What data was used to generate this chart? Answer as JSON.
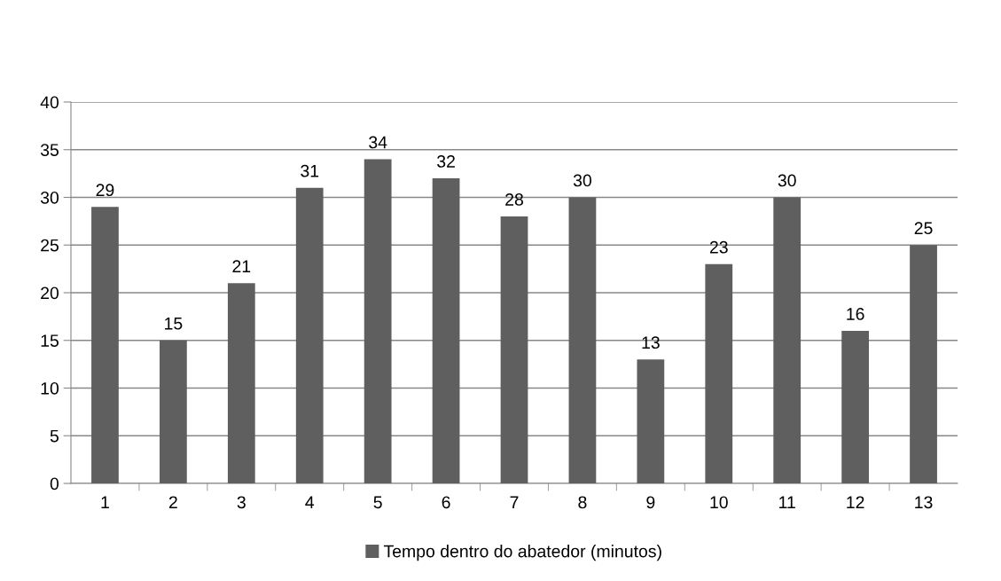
{
  "chart_data": {
    "type": "bar",
    "categories": [
      "1",
      "2",
      "3",
      "4",
      "5",
      "6",
      "7",
      "8",
      "9",
      "10",
      "11",
      "12",
      "13"
    ],
    "series": [
      {
        "name": "Tempo dentro do abatedor (minutos)",
        "color": "#5f5f5f",
        "values": [
          29,
          15,
          21,
          31,
          34,
          32,
          28,
          30,
          13,
          23,
          30,
          16,
          25
        ]
      }
    ],
    "ylim": [
      0,
      40
    ],
    "yticks": [
      0,
      5,
      10,
      15,
      20,
      25,
      30,
      35,
      40
    ],
    "grid": "y",
    "legend": "bottom",
    "data_labels": true
  }
}
